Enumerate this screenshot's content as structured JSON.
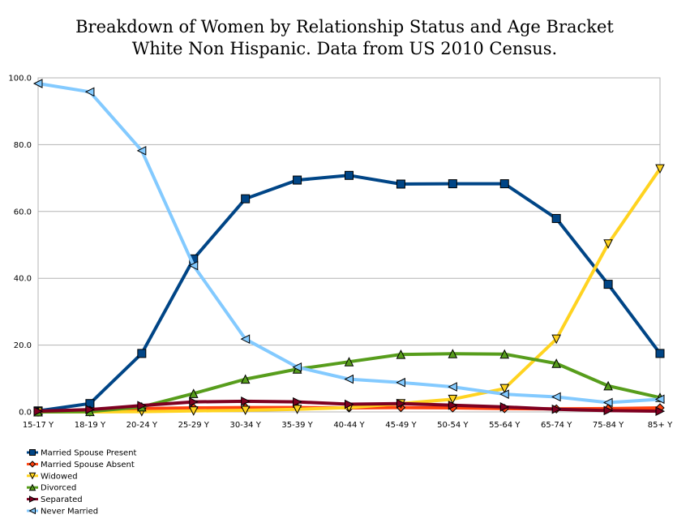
{
  "chart_data": {
    "type": "line",
    "title": "Breakdown of Women by Relationship Status and Age Bracket",
    "subtitle": "White Non Hispanic.  Data from US 2010 Census.",
    "xlabel": "",
    "ylabel": "",
    "categories": [
      "15-17 Y",
      "18-19 Y",
      "20-24 Y",
      "25-29 Y",
      "30-34 Y",
      "35-39 Y",
      "40-44 Y",
      "45-49 Y",
      "50-54 Y",
      "55-64 Y",
      "65-74 Y",
      "75-84 Y",
      "85+ Y"
    ],
    "ylim": [
      0,
      100
    ],
    "yticks": [
      "0.0",
      "20.0",
      "40.0",
      "60.0",
      "80.0",
      "100.0"
    ],
    "grid": true,
    "legend_position": "bottom-left",
    "series": [
      {
        "name": "Married Spouse Present",
        "color": "#004586",
        "marker": "square",
        "values": [
          0.3,
          2.5,
          17.5,
          45.8,
          63.8,
          69.4,
          70.8,
          68.2,
          68.3,
          68.3,
          57.9,
          38.2,
          17.5
        ]
      },
      {
        "name": "Married Spouse Absent",
        "color": "#ff420e",
        "marker": "diamond",
        "values": [
          0.2,
          0.5,
          1.0,
          1.2,
          1.3,
          1.3,
          1.2,
          1.3,
          1.2,
          1.0,
          0.9,
          1.0,
          1.2
        ]
      },
      {
        "name": "Widowed",
        "color": "#ffd320",
        "marker": "triangle-down",
        "values": [
          0.0,
          0.0,
          0.1,
          0.3,
          0.5,
          0.8,
          1.3,
          2.5,
          3.8,
          7.0,
          21.8,
          50.3,
          72.8
        ]
      },
      {
        "name": "Divorced",
        "color": "#579d1c",
        "marker": "triangle-up",
        "values": [
          0.0,
          0.1,
          1.5,
          5.5,
          9.8,
          12.8,
          15.0,
          17.2,
          17.4,
          17.3,
          14.5,
          7.8,
          4.3
        ]
      },
      {
        "name": "Separated",
        "color": "#7e0021",
        "marker": "arrow-right",
        "values": [
          0.2,
          0.7,
          1.9,
          3.0,
          3.2,
          3.0,
          2.3,
          2.5,
          2.0,
          1.5,
          0.8,
          0.4,
          0.2
        ]
      },
      {
        "name": "Never Married",
        "color": "#83caff",
        "marker": "arrow-left",
        "values": [
          98.3,
          95.8,
          78.2,
          43.8,
          21.8,
          13.4,
          9.8,
          8.8,
          7.5,
          5.3,
          4.5,
          2.8,
          3.8
        ]
      }
    ]
  }
}
